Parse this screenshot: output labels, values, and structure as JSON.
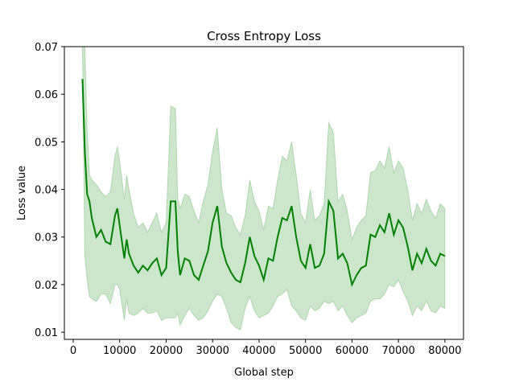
{
  "chart_data": {
    "type": "line",
    "title": "Cross Entropy Loss",
    "xlabel": "Global step",
    "ylabel": "Loss value",
    "xlim": [
      -1900,
      84000
    ],
    "ylim": [
      0.0085,
      0.07
    ],
    "xticks": [
      0,
      10000,
      20000,
      30000,
      40000,
      50000,
      60000,
      70000,
      80000
    ],
    "yticks": [
      0.01,
      0.02,
      0.03,
      0.04,
      0.05,
      0.06,
      0.07
    ],
    "grid": false,
    "line_color": "#008000",
    "band_color": "#80c080",
    "series": [
      {
        "x": [
          2000,
          2500,
          3000,
          3500,
          4000,
          5000,
          6000,
          7000,
          8000,
          9000,
          9500,
          10000,
          11000,
          11500,
          12000,
          13000,
          14000,
          15000,
          16000,
          17000,
          18000,
          19000,
          20000,
          21000,
          22000,
          22500,
          23000,
          24000,
          25000,
          26000,
          27000,
          28000,
          29000,
          30000,
          31000,
          32000,
          33000,
          34000,
          35000,
          36000,
          37000,
          38000,
          39000,
          40000,
          41000,
          42000,
          43000,
          44000,
          45000,
          46000,
          47000,
          48000,
          49000,
          50000,
          51000,
          52000,
          53000,
          54000,
          55000,
          56000,
          57000,
          58000,
          59000,
          60000,
          61000,
          62000,
          63000,
          64000,
          65000,
          66000,
          67000,
          68000,
          69000,
          70000,
          71000,
          72000,
          73000,
          74000,
          75000,
          76000,
          77000,
          78000,
          79000,
          80000
        ],
        "values": [
          0.0632,
          0.048,
          0.039,
          0.0375,
          0.034,
          0.03,
          0.0315,
          0.029,
          0.0285,
          0.0345,
          0.036,
          0.0325,
          0.0255,
          0.0295,
          0.0265,
          0.024,
          0.0225,
          0.024,
          0.023,
          0.0245,
          0.0255,
          0.022,
          0.0235,
          0.0375,
          0.0375,
          0.027,
          0.022,
          0.0255,
          0.025,
          0.022,
          0.021,
          0.024,
          0.027,
          0.033,
          0.0365,
          0.028,
          0.0245,
          0.0225,
          0.021,
          0.0205,
          0.0245,
          0.03,
          0.026,
          0.024,
          0.021,
          0.0255,
          0.025,
          0.03,
          0.034,
          0.0335,
          0.0365,
          0.03,
          0.025,
          0.0235,
          0.0285,
          0.0235,
          0.024,
          0.0265,
          0.0375,
          0.0355,
          0.0255,
          0.0265,
          0.0245,
          0.02,
          0.022,
          0.0235,
          0.024,
          0.0305,
          0.03,
          0.0325,
          0.031,
          0.035,
          0.0305,
          0.0335,
          0.032,
          0.028,
          0.023,
          0.0265,
          0.0245,
          0.0275,
          0.025,
          0.024,
          0.0265,
          0.026
        ],
        "band_low": [
          0.07,
          0.026,
          0.021,
          0.0175,
          0.017,
          0.0165,
          0.018,
          0.018,
          0.016,
          0.02,
          0.02,
          0.019,
          0.0125,
          0.017,
          0.014,
          0.0135,
          0.014,
          0.015,
          0.014,
          0.014,
          0.0145,
          0.0125,
          0.013,
          0.013,
          0.013,
          0.014,
          0.0115,
          0.0135,
          0.015,
          0.0135,
          0.0125,
          0.013,
          0.0145,
          0.0165,
          0.018,
          0.0175,
          0.015,
          0.012,
          0.011,
          0.0105,
          0.015,
          0.0175,
          0.0145,
          0.013,
          0.0135,
          0.014,
          0.0155,
          0.0175,
          0.018,
          0.019,
          0.0155,
          0.0145,
          0.013,
          0.0125,
          0.0155,
          0.0145,
          0.015,
          0.0165,
          0.016,
          0.0165,
          0.0145,
          0.0155,
          0.0135,
          0.012,
          0.013,
          0.0135,
          0.014,
          0.0165,
          0.017,
          0.017,
          0.018,
          0.02,
          0.0195,
          0.021,
          0.0185,
          0.0165,
          0.0135,
          0.0155,
          0.0145,
          0.0165,
          0.0145,
          0.014,
          0.0155,
          0.015
        ],
        "band_high": [
          0.07,
          0.07,
          0.052,
          0.043,
          0.042,
          0.041,
          0.0395,
          0.0385,
          0.0395,
          0.047,
          0.049,
          0.046,
          0.038,
          0.043,
          0.04,
          0.035,
          0.032,
          0.033,
          0.031,
          0.033,
          0.035,
          0.031,
          0.033,
          0.0575,
          0.057,
          0.038,
          0.036,
          0.039,
          0.0385,
          0.0355,
          0.033,
          0.0375,
          0.041,
          0.048,
          0.053,
          0.04,
          0.035,
          0.0345,
          0.032,
          0.0305,
          0.0345,
          0.042,
          0.0375,
          0.0355,
          0.0315,
          0.0365,
          0.036,
          0.042,
          0.047,
          0.046,
          0.05,
          0.043,
          0.035,
          0.033,
          0.04,
          0.0335,
          0.0345,
          0.037,
          0.054,
          0.052,
          0.0375,
          0.039,
          0.0355,
          0.0295,
          0.032,
          0.0335,
          0.0345,
          0.0435,
          0.044,
          0.046,
          0.0445,
          0.049,
          0.0435,
          0.046,
          0.0445,
          0.04,
          0.0335,
          0.037,
          0.035,
          0.038,
          0.0355,
          0.034,
          0.037,
          0.036
        ]
      }
    ]
  }
}
